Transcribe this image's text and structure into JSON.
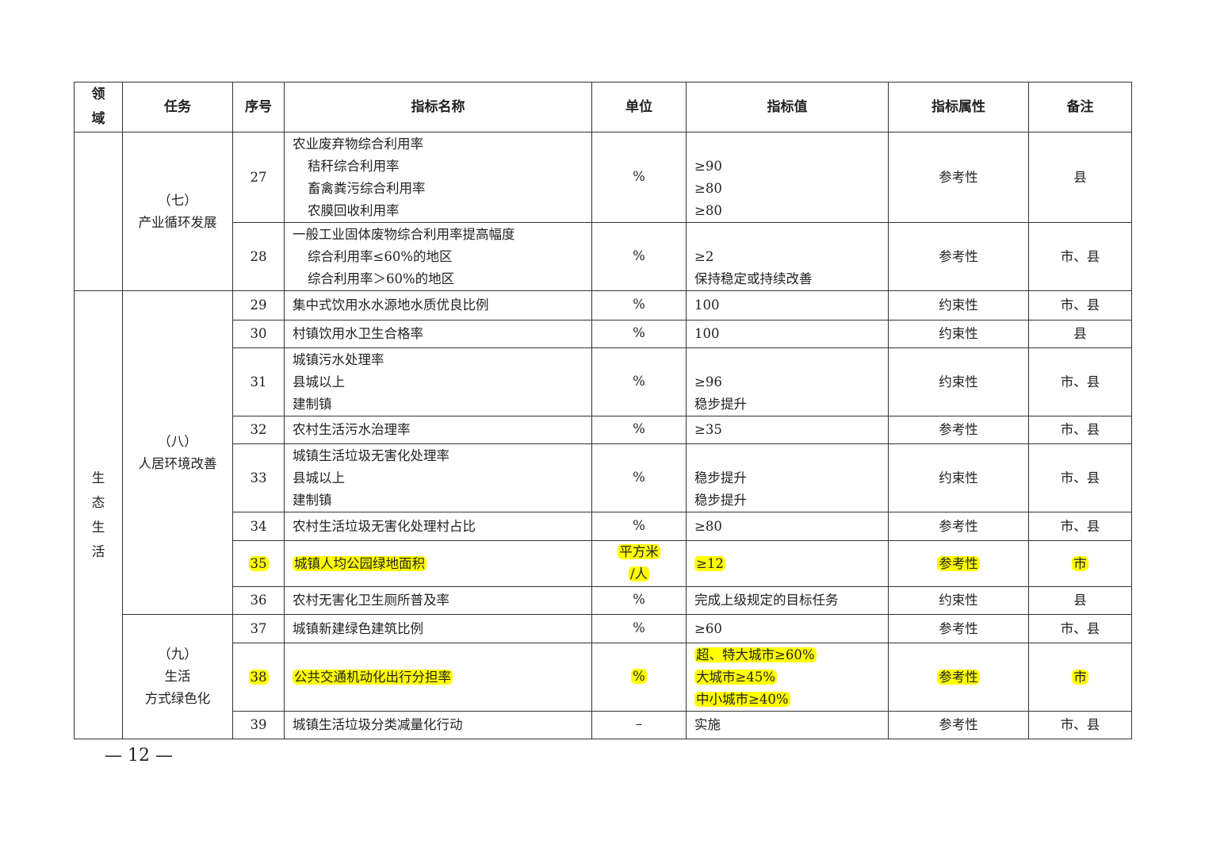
{
  "headers": [
    "领\n域",
    "任务",
    "序号",
    "指标名称",
    "单位",
    "指标值",
    "指标属性",
    "备注"
  ],
  "domains": [
    {
      "label": "",
      "rowspan": 2
    },
    {
      "label": "生\n态\n生\n活",
      "rowspan": 11
    }
  ],
  "tasks": [
    {
      "lines": [
        "（七）",
        "产业循环发展"
      ],
      "rowspan": 2
    },
    {
      "lines": [
        "（八）",
        "人居环境改善"
      ],
      "rowspan": 8
    },
    {
      "lines": [
        "（九）",
        "生活",
        "方式绿色化"
      ],
      "rowspan": 3
    }
  ],
  "rows": [
    {
      "no": "27",
      "name": [
        "农业废弃物综合利用率",
        "秸秆综合利用率",
        "畜禽粪污综合利用率",
        "农膜回收利用率"
      ],
      "unit": [
        "%"
      ],
      "value": [
        "",
        "≥90",
        "≥80",
        "≥80"
      ],
      "attr": "参考性",
      "note": "县",
      "highlight": false
    },
    {
      "no": "28",
      "name": [
        "一般工业固体废物综合利用率提高幅度",
        "综合利用率≤60%的地区",
        "综合利用率＞60%的地区"
      ],
      "unit": [
        "%"
      ],
      "value": [
        "",
        "≥2",
        "保持稳定或持续改善"
      ],
      "attr": "参考性",
      "note": "市、县",
      "highlight": false
    },
    {
      "no": "29",
      "name": [
        "集中式饮用水水源地水质优良比例"
      ],
      "unit": [
        "%"
      ],
      "value": [
        "100"
      ],
      "attr": "约束性",
      "note": "市、县",
      "highlight": false
    },
    {
      "no": "30",
      "name": [
        "村镇饮用水卫生合格率"
      ],
      "unit": [
        "%"
      ],
      "value": [
        "100"
      ],
      "attr": "约束性",
      "note": "县",
      "highlight": false
    },
    {
      "no": "31",
      "name": [
        "城镇污水处理率",
        "县城以上",
        "建制镇"
      ],
      "unit": [
        "%"
      ],
      "value": [
        "",
        "≥96",
        "稳步提升"
      ],
      "attr": "约束性",
      "note": "市、县",
      "highlight": false
    },
    {
      "no": "32",
      "name": [
        "农村生活污水治理率"
      ],
      "unit": [
        "%"
      ],
      "value": [
        "≥35"
      ],
      "attr": "参考性",
      "note": "市、县",
      "highlight": false
    },
    {
      "no": "33",
      "name": [
        "城镇生活垃圾无害化处理率",
        "县城以上",
        "建制镇"
      ],
      "unit": [
        "%"
      ],
      "value": [
        "",
        "稳步提升",
        "稳步提升"
      ],
      "attr": "约束性",
      "note": "市、县",
      "highlight": false
    },
    {
      "no": "34",
      "name": [
        "农村生活垃圾无害化处理村占比"
      ],
      "unit": [
        "%"
      ],
      "value": [
        "≥80"
      ],
      "attr": "参考性",
      "note": "市、县",
      "highlight": false
    },
    {
      "no": "35",
      "name": [
        "城镇人均公园绿地面积"
      ],
      "unit": [
        "平方米",
        "/人"
      ],
      "value": [
        "≥12"
      ],
      "attr": "参考性",
      "note": "市",
      "highlight": true
    },
    {
      "no": "36",
      "name": [
        "农村无害化卫生厕所普及率"
      ],
      "unit": [
        "%"
      ],
      "value": [
        "完成上级规定的目标任务"
      ],
      "attr": "约束性",
      "note": "县",
      "highlight": false
    },
    {
      "no": "37",
      "name": [
        "城镇新建绿色建筑比例"
      ],
      "unit": [
        "%"
      ],
      "value": [
        "≥60"
      ],
      "attr": "参考性",
      "note": "市、县",
      "highlight": false
    },
    {
      "no": "38",
      "name": [
        "公共交通机动化出行分担率"
      ],
      "unit": [
        "%"
      ],
      "value": [
        "超、特大城市≥60%",
        "大城市≥45%",
        "中小城市≥40%"
      ],
      "attr": "参考性",
      "note": "市",
      "highlight": true
    },
    {
      "no": "39",
      "name": [
        "城镇生活垃圾分类减量化行动"
      ],
      "unit": [
        "–"
      ],
      "value": [
        "实施"
      ],
      "attr": "参考性",
      "note": "市、县",
      "highlight": false
    }
  ],
  "footer": "— 12 —",
  "colors": {
    "highlight": "#ffff00",
    "border": "#333333"
  }
}
